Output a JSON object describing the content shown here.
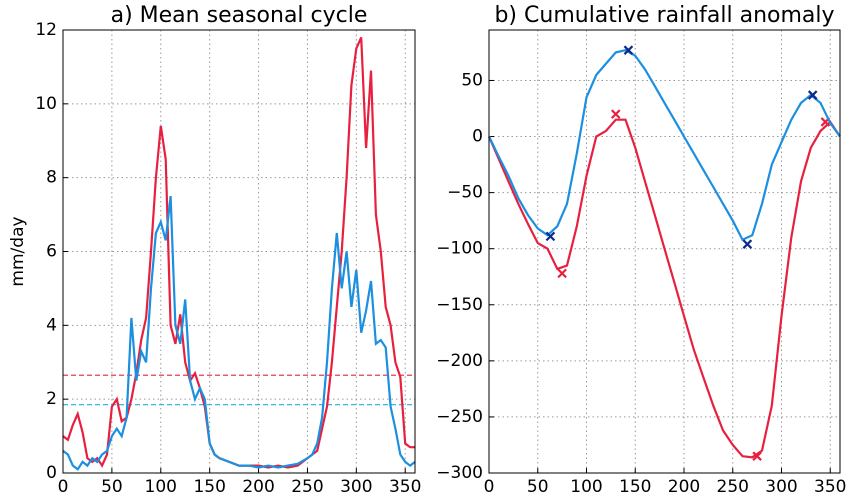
{
  "chart_data": [
    {
      "type": "line",
      "title": "a) Mean seasonal cycle",
      "ylabel": "mm/day",
      "grid": true,
      "xlim": [
        0,
        360
      ],
      "xticks": [
        0,
        50,
        100,
        150,
        200,
        250,
        300,
        350
      ],
      "ylim": [
        0,
        12
      ],
      "yticks": [
        0,
        2,
        4,
        6,
        8,
        10,
        12
      ],
      "x": [
        0,
        5,
        10,
        15,
        20,
        25,
        30,
        35,
        40,
        45,
        50,
        55,
        60,
        65,
        70,
        75,
        80,
        85,
        90,
        95,
        100,
        105,
        110,
        115,
        120,
        125,
        130,
        135,
        140,
        145,
        150,
        155,
        160,
        170,
        180,
        190,
        200,
        210,
        220,
        230,
        240,
        250,
        255,
        260,
        265,
        270,
        275,
        280,
        285,
        290,
        295,
        300,
        305,
        310,
        315,
        320,
        325,
        330,
        335,
        340,
        345,
        350,
        355,
        360
      ],
      "series": [
        {
          "color": "#e8203f",
          "values": [
            1.0,
            0.9,
            1.3,
            1.6,
            1.1,
            0.4,
            0.3,
            0.4,
            0.2,
            0.5,
            1.8,
            2.0,
            1.4,
            1.5,
            2.0,
            2.7,
            3.6,
            4.2,
            6.0,
            8.0,
            9.4,
            8.5,
            4.0,
            3.5,
            4.3,
            3.0,
            2.5,
            2.7,
            2.3,
            1.8,
            0.8,
            0.5,
            0.4,
            0.3,
            0.2,
            0.2,
            0.2,
            0.15,
            0.2,
            0.15,
            0.2,
            0.4,
            0.5,
            0.6,
            1.2,
            1.8,
            3.0,
            4.5,
            6.0,
            8.0,
            10.5,
            11.5,
            11.8,
            8.8,
            10.9,
            7.0,
            6.0,
            4.5,
            4.0,
            3.0,
            2.6,
            0.8,
            0.7,
            0.7
          ]
        },
        {
          "color": "#1b8fe0",
          "values": [
            0.6,
            0.5,
            0.2,
            0.1,
            0.3,
            0.2,
            0.4,
            0.3,
            0.5,
            0.6,
            1.0,
            1.2,
            1.0,
            1.5,
            4.2,
            2.5,
            3.3,
            3.0,
            5.0,
            6.5,
            6.8,
            6.3,
            7.5,
            4.0,
            3.5,
            4.7,
            2.5,
            2.0,
            2.3,
            2.0,
            0.8,
            0.5,
            0.4,
            0.3,
            0.2,
            0.2,
            0.15,
            0.2,
            0.15,
            0.2,
            0.25,
            0.4,
            0.5,
            0.8,
            1.5,
            3.0,
            5.0,
            6.5,
            5.0,
            6.0,
            4.5,
            5.5,
            3.8,
            4.4,
            5.2,
            3.5,
            3.6,
            3.4,
            1.8,
            1.2,
            0.5,
            0.3,
            0.2,
            0.3
          ]
        }
      ],
      "hlines": [
        {
          "value": 2.65,
          "color": "#e8203f"
        },
        {
          "value": 1.85,
          "color": "#1bb0e0"
        }
      ]
    },
    {
      "type": "line",
      "title": "b) Cumulative rainfall anomaly",
      "grid": true,
      "xlim": [
        0,
        360
      ],
      "xticks": [
        0,
        50,
        100,
        150,
        200,
        250,
        300,
        350
      ],
      "ylim": [
        -300,
        95
      ],
      "yticks": [
        {
          "value": -300,
          "label": "−300"
        },
        {
          "value": -250,
          "label": "−250"
        },
        {
          "value": -200,
          "label": "−200"
        },
        {
          "value": -150,
          "label": "−150"
        },
        {
          "value": -100,
          "label": "−100"
        },
        {
          "value": -50,
          "label": "−50"
        },
        0,
        50
      ],
      "x": [
        0,
        10,
        20,
        30,
        40,
        50,
        60,
        70,
        80,
        90,
        100,
        110,
        120,
        130,
        140,
        150,
        160,
        170,
        180,
        190,
        200,
        210,
        220,
        230,
        240,
        250,
        260,
        270,
        280,
        290,
        300,
        310,
        320,
        330,
        340,
        350,
        360
      ],
      "series": [
        {
          "color": "#e8203f",
          "marker_color": "#e8203f",
          "values": [
            0,
            -20,
            -40,
            -60,
            -78,
            -95,
            -100,
            -118,
            -115,
            -80,
            -35,
            0,
            5,
            15,
            15,
            -10,
            -40,
            -70,
            -100,
            -130,
            -160,
            -190,
            -215,
            -240,
            -262,
            -275,
            -285,
            -286,
            -280,
            -240,
            -160,
            -90,
            -40,
            -10,
            5,
            13,
            0
          ],
          "markers": {
            "x": [
              75,
              130,
              275,
              345
            ],
            "y": [
              -122,
              20,
              -285,
              13
            ]
          }
        },
        {
          "color": "#1b8fe0",
          "marker_color": "#0b2a8c",
          "values": [
            0,
            -18,
            -35,
            -55,
            -70,
            -82,
            -88,
            -80,
            -60,
            -15,
            35,
            55,
            65,
            75,
            77,
            72,
            60,
            45,
            30,
            15,
            0,
            -15,
            -30,
            -45,
            -60,
            -75,
            -92,
            -88,
            -60,
            -25,
            -5,
            15,
            30,
            37,
            30,
            12,
            0
          ],
          "markers": {
            "x": [
              63,
              143,
              265,
              332
            ],
            "y": [
              -89,
              77,
              -96,
              37
            ]
          }
        }
      ]
    }
  ]
}
